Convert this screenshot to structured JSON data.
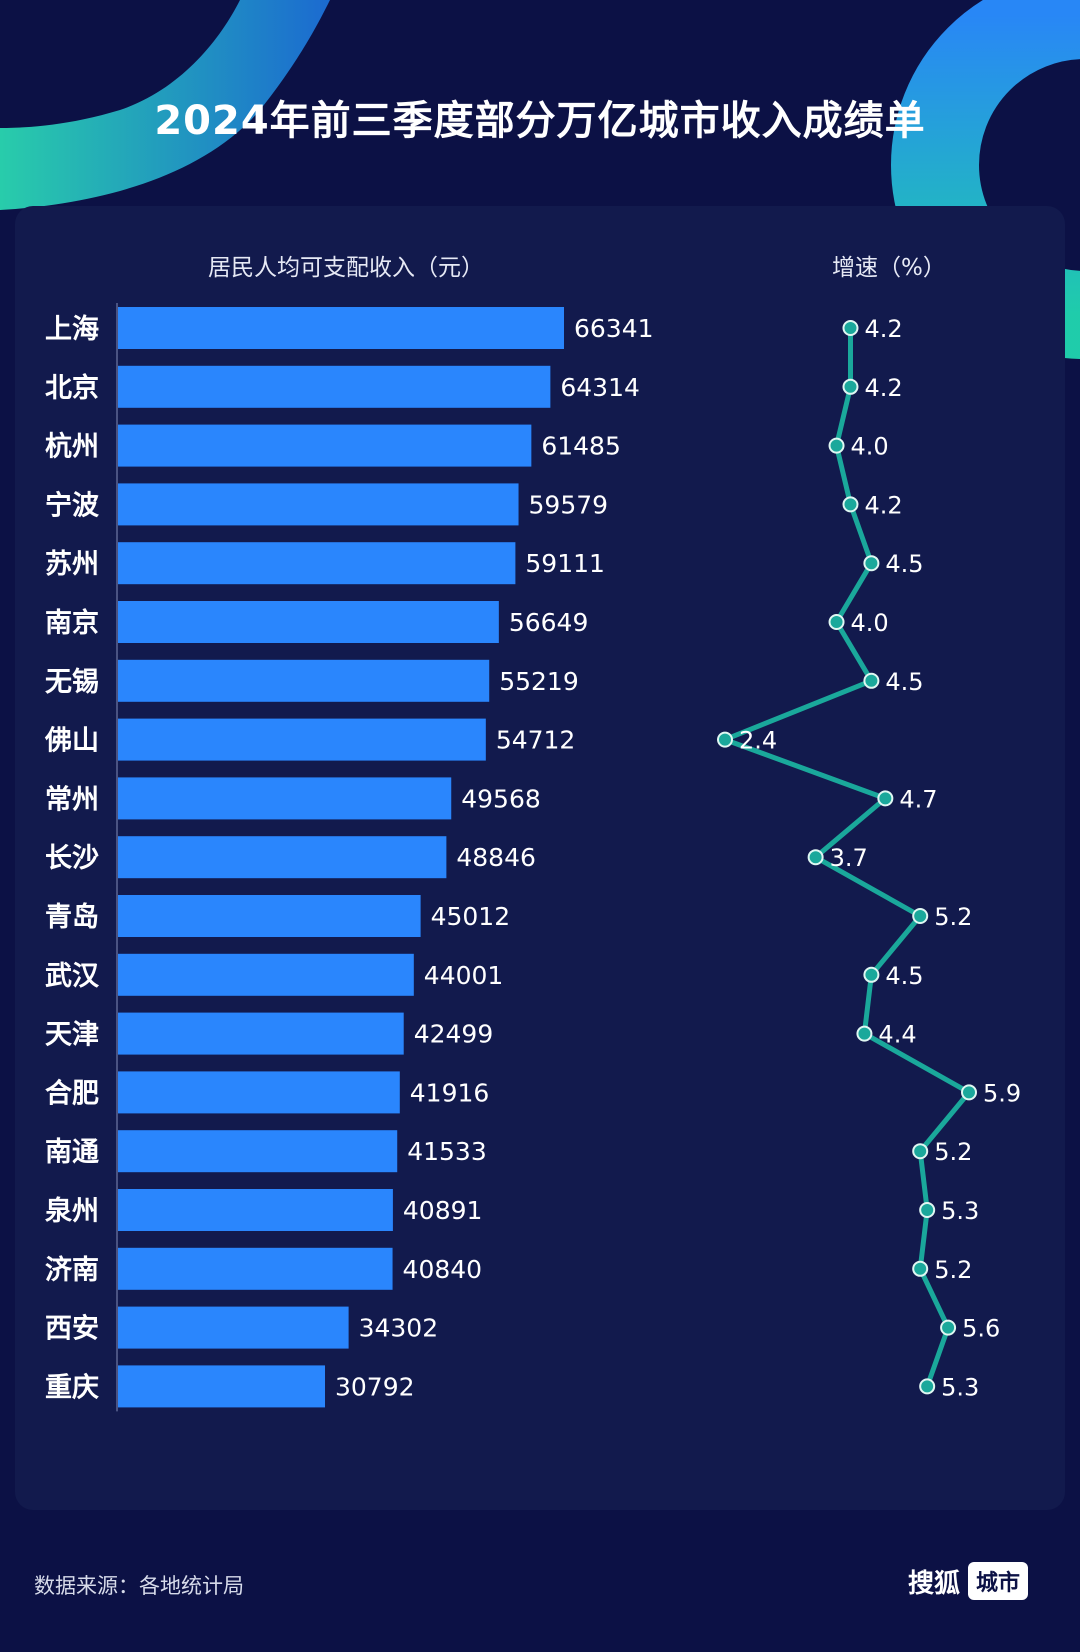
{
  "title": "2024年前三季度部分万亿城市收入成绩单",
  "headers": {
    "income": "居民人均可支配收入（元）",
    "growth": "增速（%）"
  },
  "footer": {
    "source": "数据来源：各地统计局",
    "brand_name": "搜狐",
    "brand_badge": "城市"
  },
  "colors": {
    "background": "#0c1145",
    "panel": "#121a4d",
    "bar": "#2a86fd",
    "line": "#1aa89b",
    "text": "#ffffff"
  },
  "chart_data": {
    "type": "bar",
    "orientation": "horizontal",
    "categories": [
      "上海",
      "北京",
      "杭州",
      "宁波",
      "苏州",
      "南京",
      "无锡",
      "佛山",
      "常州",
      "长沙",
      "青岛",
      "武汉",
      "天津",
      "合肥",
      "南通",
      "泉州",
      "济南",
      "西安",
      "重庆"
    ],
    "series": [
      {
        "name": "居民人均可支配收入（元）",
        "type": "bar",
        "values": [
          66341,
          64314,
          61485,
          59579,
          59111,
          56649,
          55219,
          54712,
          49568,
          48846,
          45012,
          44001,
          42499,
          41916,
          41533,
          40891,
          40840,
          34302,
          30792
        ]
      },
      {
        "name": "增速（%）",
        "type": "line",
        "values": [
          4.2,
          4.2,
          4.0,
          4.2,
          4.5,
          4.0,
          4.5,
          2.4,
          4.7,
          3.7,
          5.2,
          4.5,
          4.4,
          5.9,
          5.2,
          5.3,
          5.2,
          5.6,
          5.3
        ],
        "labels": [
          "4.2",
          "4.2",
          "4.0",
          "4.2",
          "4.5",
          "4.0",
          "4.5",
          "2.4",
          "4.7",
          "3.7",
          "5.2",
          "4.5",
          "4.4",
          "5.9",
          "5.2",
          "5.3",
          "5.2",
          "5.6",
          "5.3"
        ]
      }
    ],
    "xlim_income": [
      0,
      70000
    ],
    "xlim_growth": [
      2,
      6
    ],
    "grid": false,
    "legend": "none"
  }
}
